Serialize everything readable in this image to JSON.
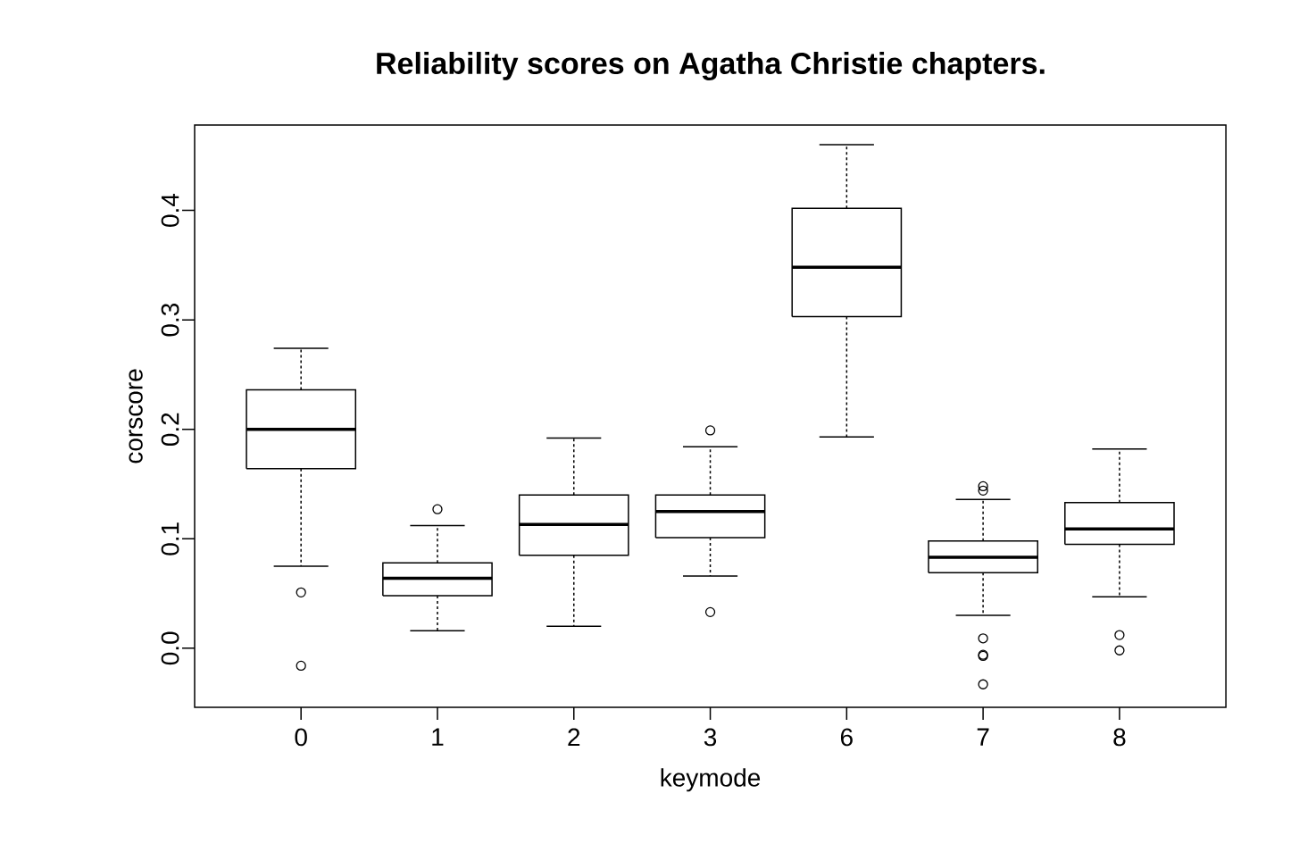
{
  "chart_data": {
    "type": "box",
    "title": "Reliability scores on Agatha Christie chapters.",
    "xlabel": "keymode",
    "ylabel": "corscore",
    "categories": [
      "0",
      "1",
      "2",
      "3",
      "6",
      "7",
      "8"
    ],
    "boxes": [
      {
        "low": 0.075,
        "q1": 0.164,
        "median": 0.2,
        "q3": 0.236,
        "high": 0.274,
        "outliers": [
          0.051,
          -0.016
        ]
      },
      {
        "low": 0.016,
        "q1": 0.048,
        "median": 0.064,
        "q3": 0.078,
        "high": 0.112,
        "outliers": [
          0.127
        ]
      },
      {
        "low": 0.02,
        "q1": 0.085,
        "median": 0.113,
        "q3": 0.14,
        "high": 0.192
      },
      {
        "low": 0.066,
        "q1": 0.101,
        "median": 0.125,
        "q3": 0.14,
        "high": 0.184,
        "outliers": [
          0.199,
          0.033
        ]
      },
      {
        "low": 0.193,
        "q1": 0.303,
        "median": 0.348,
        "q3": 0.402,
        "high": 0.46
      },
      {
        "low": 0.03,
        "q1": 0.069,
        "median": 0.083,
        "q3": 0.098,
        "high": 0.136,
        "outliers": [
          0.148,
          0.144,
          0.009,
          -0.006,
          -0.007,
          -0.033
        ]
      },
      {
        "low": 0.047,
        "q1": 0.095,
        "median": 0.109,
        "q3": 0.133,
        "high": 0.182,
        "outliers": [
          0.012,
          -0.002
        ]
      }
    ],
    "color": "#000000",
    "ylim": [
      -0.054,
      0.478
    ],
    "yticks": [
      {
        "value": 0,
        "label": "0.0"
      },
      0.1,
      0.2,
      0.3,
      0.4
    ]
  }
}
